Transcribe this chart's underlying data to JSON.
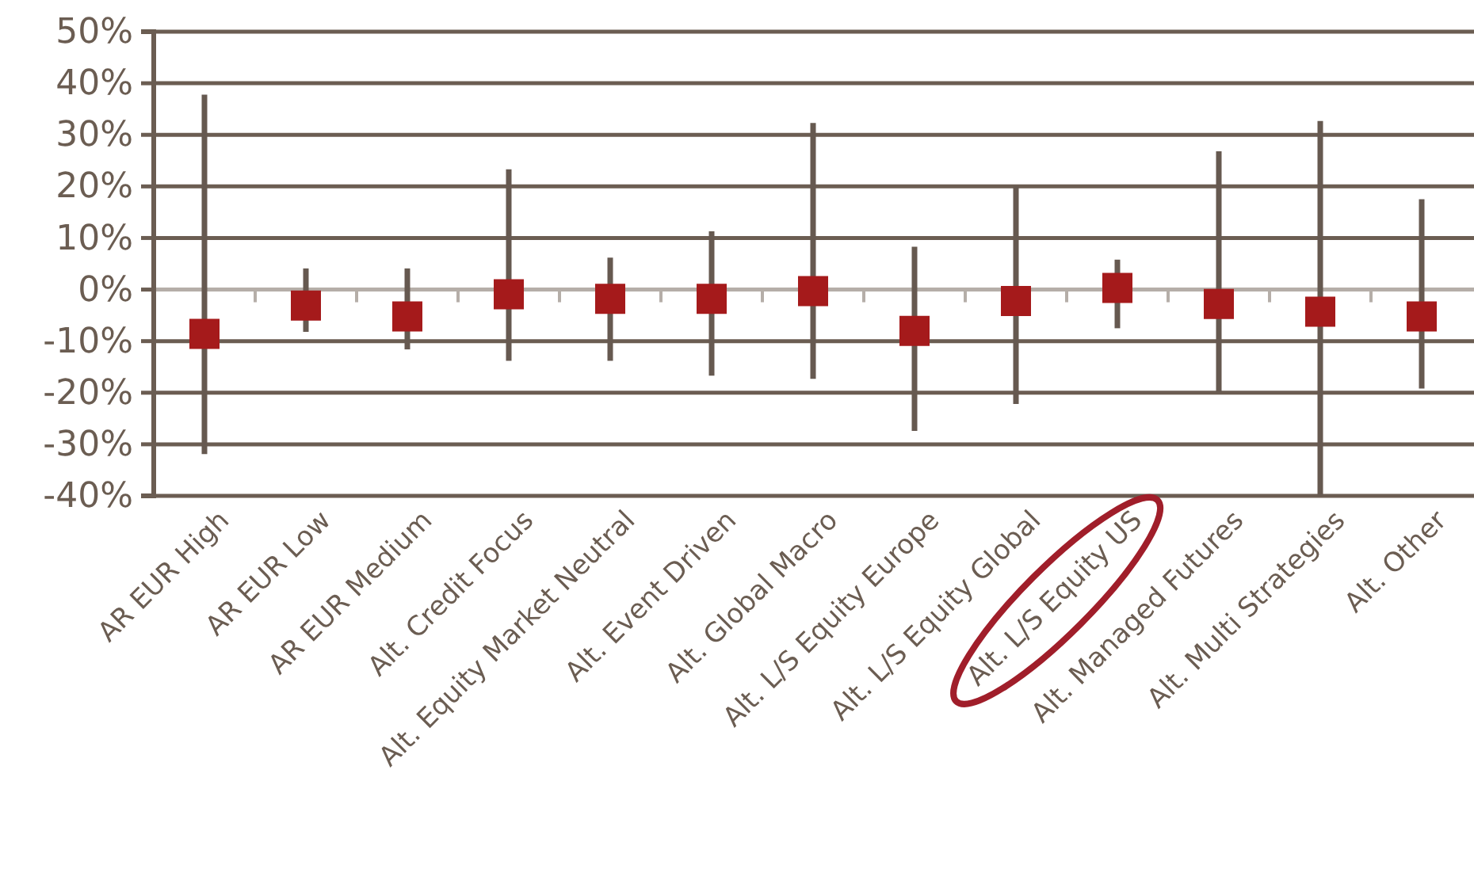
{
  "chart_data": {
    "type": "scatter",
    "categories": [
      "AR EUR High",
      "AR EUR Low",
      "AR EUR Medium",
      "Alt. Credit Focus",
      "Alt. Equity Market Neutral",
      "Alt. Event Driven",
      "Alt. Global Macro",
      "Alt. L/S Equity Europe",
      "Alt. L/S Equity Global",
      "Alt. L/S Equity US",
      "Alt. Managed Futures",
      "Alt. Multi Strategies",
      "Alt. Other"
    ],
    "series": [
      {
        "color": "#a51a1b",
        "values": [
          -8.6,
          -3.1,
          -5.2,
          -0.9,
          -1.8,
          -1.8,
          -0.3,
          -8.0,
          -2.2,
          0.3,
          -2.8,
          -4.3,
          -5.2
        ],
        "errors": [
          [
            -31.9,
            37.8
          ],
          [
            -8.2,
            4.1
          ],
          [
            -11.6,
            4.1
          ],
          [
            -13.8,
            23.3
          ],
          [
            -13.8,
            6.2
          ],
          [
            -16.7,
            11.3
          ],
          [
            -17.3,
            32.3
          ],
          [
            -27.4,
            8.3
          ],
          [
            -22.2,
            20.0
          ],
          [
            -7.5,
            5.8
          ],
          [
            -19.9,
            26.8
          ],
          [
            -40,
            32.7
          ],
          [
            -19.2,
            17.5
          ]
        ]
      }
    ],
    "marker": "square",
    "ylim": [
      -40,
      50
    ],
    "yticks": [
      {
        "value": -40,
        "label": "-40%"
      },
      {
        "value": -30,
        "label": "-30%"
      },
      {
        "value": -20,
        "label": "-20%"
      },
      {
        "value": -10,
        "label": "-10%"
      },
      {
        "value": 0,
        "label": "0%"
      },
      {
        "value": 10,
        "label": "10%"
      },
      {
        "value": 20,
        "label": "20%"
      },
      {
        "value": 30,
        "label": "30%"
      },
      {
        "value": 40,
        "label": "40%"
      },
      {
        "value": 50,
        "label": "50%"
      }
    ],
    "grid": "y"
  }
}
